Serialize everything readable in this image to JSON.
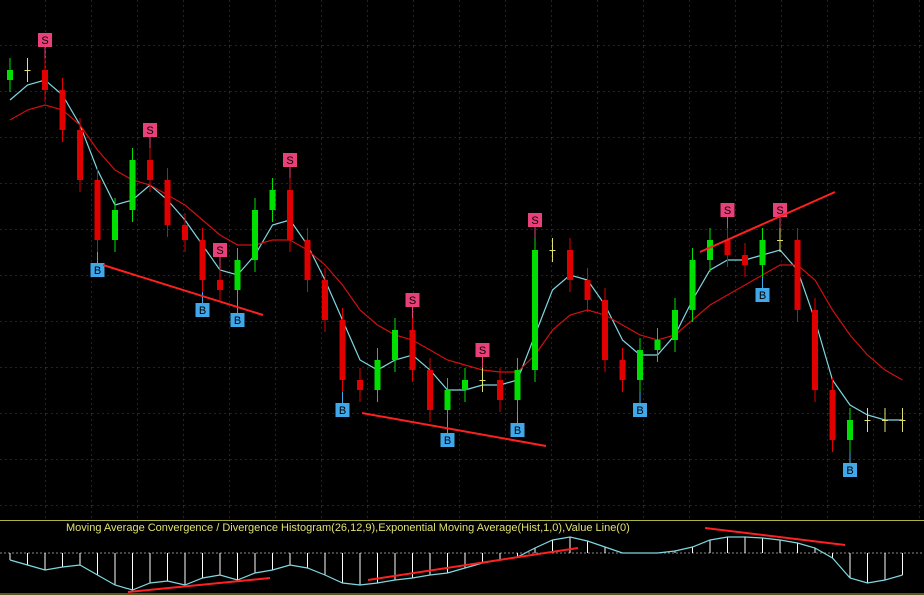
{
  "chart_data": [
    {
      "type": "candlestick",
      "ylim": [
        0,
        520
      ],
      "up_color": "#00e000",
      "down_color": "#e00000",
      "doji_color": "#e0e070",
      "open": [
        440,
        450,
        450,
        430,
        390,
        340,
        280,
        310,
        360,
        340,
        295,
        280,
        240,
        230,
        260,
        310,
        330,
        280,
        240,
        200,
        140,
        130,
        160,
        190,
        150,
        110,
        130,
        140,
        140,
        120,
        150,
        270,
        270,
        240,
        220,
        160,
        140,
        170,
        180,
        210,
        260,
        280,
        265,
        255,
        280,
        280,
        210,
        130,
        80,
        100,
        100,
        100
      ],
      "high": [
        462,
        462,
        462,
        442,
        402,
        352,
        322,
        372,
        372,
        352,
        307,
        292,
        252,
        272,
        322,
        342,
        342,
        292,
        252,
        212,
        152,
        172,
        202,
        202,
        162,
        142,
        152,
        152,
        152,
        162,
        282,
        282,
        282,
        252,
        232,
        172,
        182,
        192,
        222,
        272,
        292,
        292,
        277,
        292,
        292,
        292,
        222,
        142,
        112,
        112,
        112,
        112
      ],
      "low": [
        428,
        438,
        418,
        378,
        328,
        268,
        268,
        298,
        328,
        283,
        268,
        228,
        218,
        218,
        248,
        298,
        268,
        228,
        188,
        128,
        118,
        118,
        148,
        138,
        98,
        98,
        118,
        128,
        108,
        108,
        138,
        258,
        228,
        208,
        148,
        128,
        128,
        158,
        168,
        198,
        248,
        253,
        243,
        243,
        268,
        198,
        118,
        68,
        68,
        88,
        88,
        88
      ],
      "close": [
        450,
        450,
        430,
        390,
        340,
        280,
        310,
        360,
        340,
        295,
        280,
        240,
        230,
        260,
        310,
        330,
        280,
        240,
        200,
        140,
        130,
        160,
        190,
        150,
        110,
        130,
        140,
        140,
        120,
        150,
        270,
        270,
        240,
        220,
        160,
        140,
        170,
        180,
        210,
        260,
        280,
        265,
        255,
        280,
        280,
        210,
        130,
        80,
        100,
        100,
        100,
        100
      ],
      "series": [
        {
          "color": "#7fd8e0",
          "values": [
            420,
            435,
            440,
            425,
            395,
            350,
            315,
            320,
            335,
            320,
            300,
            275,
            250,
            245,
            265,
            295,
            300,
            275,
            240,
            200,
            160,
            150,
            160,
            165,
            150,
            130,
            130,
            135,
            135,
            140,
            185,
            230,
            245,
            240,
            215,
            180,
            165,
            165,
            185,
            220,
            250,
            260,
            260,
            265,
            270,
            250,
            200,
            140,
            115,
            105,
            100,
            100
          ]
        },
        {
          "color": "#d01010",
          "values": [
            400,
            410,
            415,
            410,
            395,
            370,
            350,
            340,
            335,
            325,
            315,
            300,
            285,
            275,
            275,
            280,
            280,
            270,
            255,
            235,
            210,
            195,
            185,
            180,
            170,
            160,
            155,
            150,
            148,
            148,
            165,
            190,
            205,
            210,
            205,
            195,
            185,
            180,
            185,
            200,
            215,
            225,
            235,
            245,
            255,
            255,
            240,
            210,
            185,
            165,
            150,
            140
          ]
        }
      ],
      "signals": [
        null,
        null,
        "S",
        null,
        null,
        "B",
        null,
        null,
        "S",
        null,
        null,
        "B",
        "S",
        "B",
        null,
        null,
        "S",
        null,
        null,
        "B",
        null,
        null,
        null,
        "S",
        null,
        "B",
        null,
        "S",
        null,
        "B",
        "S",
        null,
        null,
        null,
        null,
        null,
        "B",
        null,
        null,
        null,
        null,
        "S",
        null,
        "B",
        "S",
        null,
        null,
        null,
        "B",
        null,
        null,
        null
      ],
      "sell_color": "#e8407a",
      "buy_color": "#40a8e8"
    },
    {
      "type": "bar",
      "title": "Moving Average Convergence / Divergence Histogram(26,12,9),Exponential Moving Average(Hist,1,0),Value Line(0)",
      "ylim": [
        -42,
        33
      ],
      "color": "#ffffff",
      "line_color": "#7fd8e0",
      "values": [
        -7,
        -12,
        -17,
        -14,
        -12,
        -22,
        -32,
        -37,
        -30,
        -28,
        -32,
        -25,
        -22,
        -27,
        -20,
        -17,
        -12,
        -15,
        -22,
        -30,
        -32,
        -30,
        -27,
        -25,
        -22,
        -20,
        -15,
        -10,
        -7,
        -4,
        5,
        13,
        16,
        12,
        6,
        0,
        0,
        0,
        2,
        6,
        13,
        16,
        16,
        15,
        13,
        10,
        5,
        -5,
        -25,
        -30,
        -27,
        -22
      ]
    }
  ]
}
